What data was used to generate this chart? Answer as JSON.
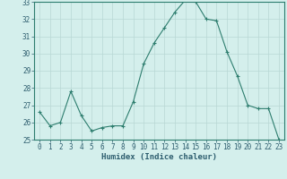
{
  "x": [
    0,
    1,
    2,
    3,
    4,
    5,
    6,
    7,
    8,
    9,
    10,
    11,
    12,
    13,
    14,
    15,
    16,
    17,
    18,
    19,
    20,
    21,
    22,
    23
  ],
  "y": [
    26.6,
    25.8,
    26.0,
    27.8,
    26.4,
    25.5,
    25.7,
    25.8,
    25.8,
    27.2,
    29.4,
    30.6,
    31.5,
    32.4,
    33.1,
    33.0,
    32.0,
    31.9,
    30.1,
    28.7,
    27.0,
    26.8,
    26.8,
    25.0
  ],
  "line_color": "#2d7d6e",
  "marker_color": "#2d7d6e",
  "bg_color": "#d4efec",
  "grid_color": "#b8d8d4",
  "xlabel": "Humidex (Indice chaleur)",
  "ylim": [
    25,
    33
  ],
  "yticks": [
    25,
    26,
    27,
    28,
    29,
    30,
    31,
    32,
    33
  ],
  "xticks": [
    0,
    1,
    2,
    3,
    4,
    5,
    6,
    7,
    8,
    9,
    10,
    11,
    12,
    13,
    14,
    15,
    16,
    17,
    18,
    19,
    20,
    21,
    22,
    23
  ],
  "font_color": "#2d5d6e",
  "label_fontsize": 6.5,
  "tick_fontsize": 5.5
}
